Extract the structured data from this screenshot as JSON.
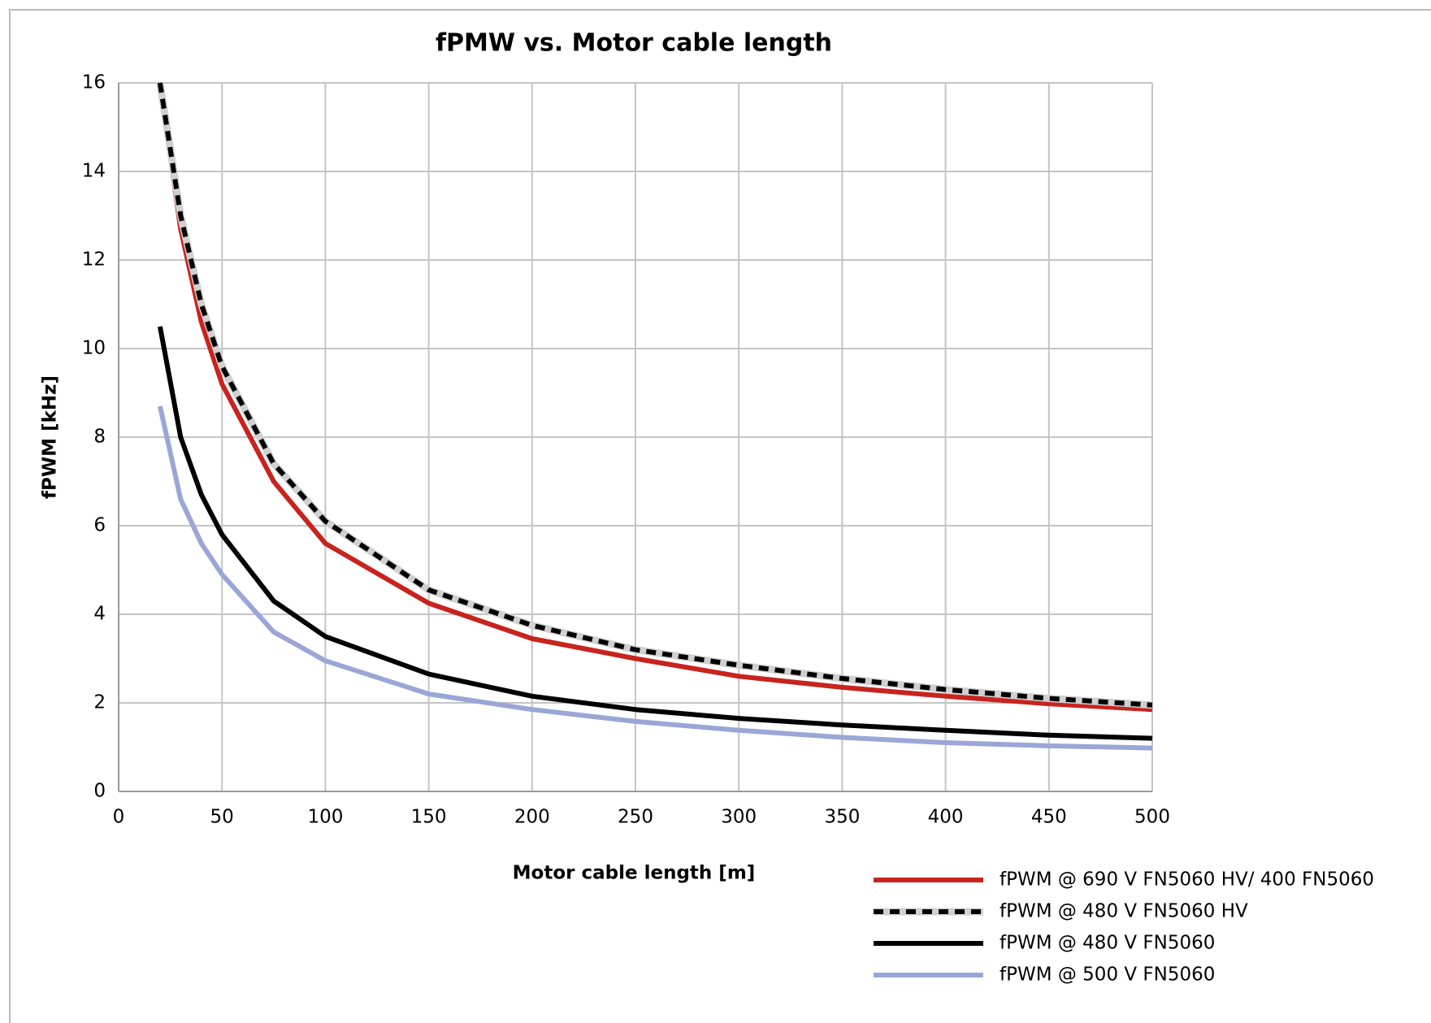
{
  "chart_data": {
    "type": "line",
    "title": "fPMW vs. Motor cable length",
    "x_label": "Motor cable length [m]",
    "y_label": "fPWM [kHz]",
    "x": [
      20,
      30,
      40,
      50,
      75,
      100,
      150,
      200,
      250,
      300,
      350,
      400,
      450,
      500
    ],
    "series": [
      {
        "name": "fPWM @ 690 V FN5060 HV/ 400 FN5060",
        "color": "#c8231e",
        "dashed": false,
        "values": [
          16,
          12.7,
          10.6,
          9.2,
          7.0,
          5.6,
          4.25,
          3.45,
          3.0,
          2.6,
          2.35,
          2.15,
          1.98,
          1.85
        ]
      },
      {
        "name": "fPWM @ 480 V FN5060 HV",
        "color": "#000000",
        "dashed": true,
        "values": [
          16,
          13.0,
          11.0,
          9.6,
          7.4,
          6.1,
          4.55,
          3.75,
          3.2,
          2.85,
          2.55,
          2.3,
          2.1,
          1.95
        ]
      },
      {
        "name": "fPWM @ 480 V FN5060",
        "color": "#000000",
        "dashed": false,
        "values": [
          10.5,
          8.0,
          6.7,
          5.8,
          4.3,
          3.5,
          2.65,
          2.15,
          1.85,
          1.65,
          1.5,
          1.38,
          1.27,
          1.2
        ]
      },
      {
        "name": "fPWM @ 500 V FN5060",
        "color": "#9aa6d6",
        "dashed": false,
        "values": [
          8.7,
          6.6,
          5.6,
          4.9,
          3.6,
          2.95,
          2.2,
          1.85,
          1.58,
          1.38,
          1.22,
          1.1,
          1.03,
          0.98
        ]
      }
    ],
    "xlim": [
      0,
      500
    ],
    "xticks": [
      0,
      50,
      100,
      150,
      200,
      250,
      300,
      350,
      400,
      450,
      500
    ],
    "ylim": [
      0,
      16
    ],
    "yticks": [
      0,
      2,
      4,
      6,
      8,
      10,
      12,
      14,
      16
    ],
    "grid": true
  }
}
